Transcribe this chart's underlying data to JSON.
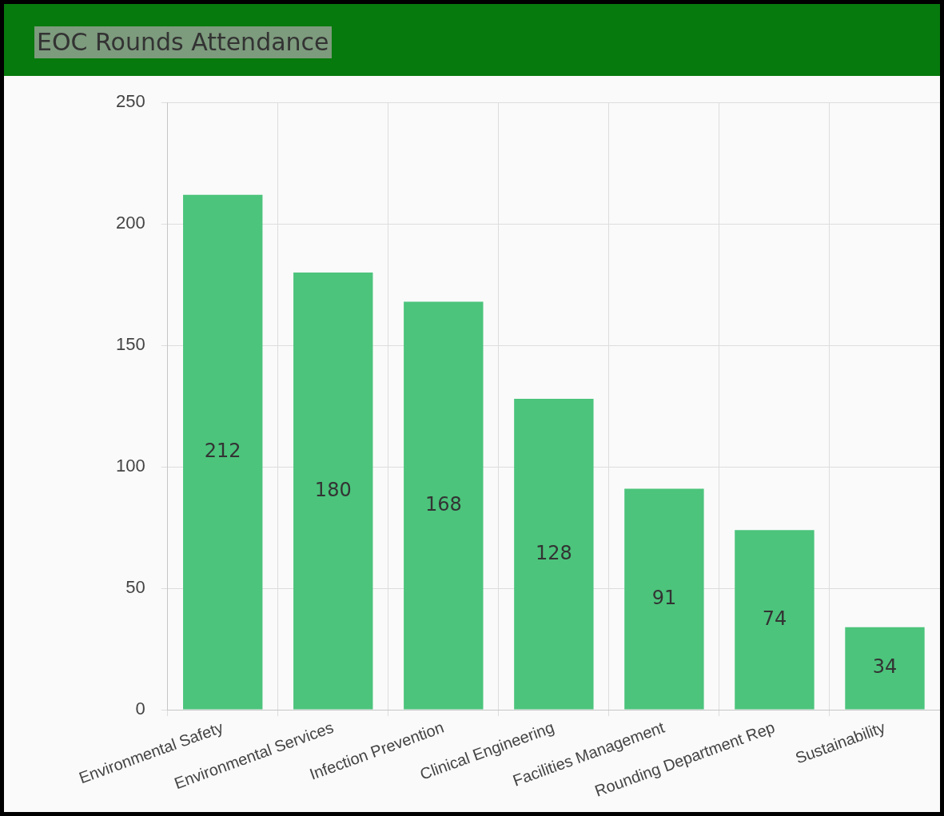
{
  "chart_data": {
    "type": "bar",
    "title": "EOC Rounds Attendance",
    "categories": [
      "Environmental Safety",
      "Environmental Services",
      "Infection Prevention",
      "Clinical Engineering",
      "Facilities Management",
      "Rounding Department Rep",
      "Sustainability"
    ],
    "values": [
      212,
      180,
      168,
      128,
      91,
      74,
      34
    ],
    "color": "#4cc47c",
    "ylim": [
      0,
      250
    ],
    "yticks": [
      0,
      50,
      100,
      150,
      200,
      250
    ],
    "grid": true,
    "data_labels": true,
    "legend": false
  }
}
